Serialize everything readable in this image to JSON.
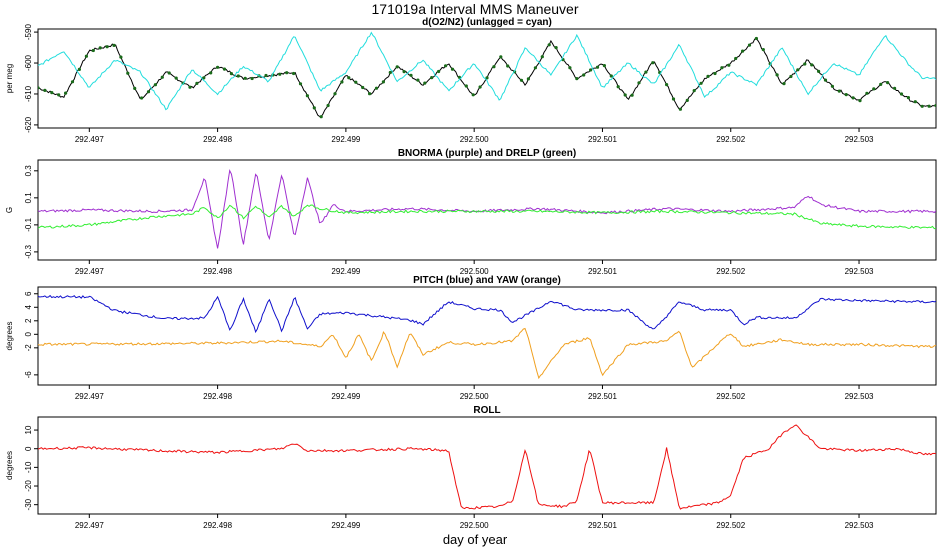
{
  "figure": {
    "title": "171019a   Interval MMS Maneuver",
    "xlabel": "day of year"
  },
  "chart_data": [
    {
      "type": "line",
      "title": "d(O2/N2) (unlagged = cyan)",
      "xlabel": "day of year",
      "ylabel": "per meg",
      "xlim": [
        292.4966,
        292.5036
      ],
      "ylim": [
        -621,
        -589
      ],
      "yticks": [
        -590,
        -600,
        -610,
        -620
      ],
      "xticks": [
        "292.497",
        "292.498",
        "292.499",
        "292.500",
        "292.501",
        "292.502",
        "292.503"
      ],
      "series": [
        {
          "name": "lagged",
          "color": "#000000",
          "markers": "#1a6b1a",
          "keys": [
            [
              292.4966,
              -608
            ],
            [
              292.4968,
              -611
            ],
            [
              292.497,
              -596
            ],
            [
              292.4972,
              -594
            ],
            [
              292.4974,
              -612
            ],
            [
              292.4976,
              -603
            ],
            [
              292.4978,
              -608
            ],
            [
              292.498,
              -601
            ],
            [
              292.4982,
              -605
            ],
            [
              292.4984,
              -604
            ],
            [
              292.4986,
              -603
            ],
            [
              292.4988,
              -618
            ],
            [
              292.499,
              -604
            ],
            [
              292.4992,
              -610
            ],
            [
              292.4994,
              -601
            ],
            [
              292.4996,
              -607
            ],
            [
              292.4998,
              -600
            ],
            [
              292.5,
              -611
            ],
            [
              292.5002,
              -598
            ],
            [
              292.5004,
              -607
            ],
            [
              292.5006,
              -593
            ],
            [
              292.5008,
              -605
            ],
            [
              292.501,
              -600
            ],
            [
              292.5012,
              -612
            ],
            [
              292.5014,
              -599
            ],
            [
              292.5016,
              -615
            ],
            [
              292.5018,
              -605
            ],
            [
              292.502,
              -600
            ],
            [
              292.5022,
              -592
            ],
            [
              292.5024,
              -607
            ],
            [
              292.5026,
              -599
            ],
            [
              292.5028,
              -608
            ],
            [
              292.503,
              -612
            ],
            [
              292.5032,
              -606
            ],
            [
              292.5034,
              -612
            ],
            [
              292.5035,
              -614
            ]
          ]
        },
        {
          "name": "unlagged",
          "color": "#22dddd",
          "keys": [
            [
              292.4966,
              -601
            ],
            [
              292.4968,
              -596
            ],
            [
              292.497,
              -608
            ],
            [
              292.4972,
              -599
            ],
            [
              292.4974,
              -603
            ],
            [
              292.4976,
              -615
            ],
            [
              292.4978,
              -602
            ],
            [
              292.498,
              -610
            ],
            [
              292.4982,
              -601
            ],
            [
              292.4984,
              -606
            ],
            [
              292.4986,
              -591
            ],
            [
              292.4988,
              -609
            ],
            [
              292.499,
              -603
            ],
            [
              292.4992,
              -590
            ],
            [
              292.4994,
              -606
            ],
            [
              292.4996,
              -599
            ],
            [
              292.4998,
              -609
            ],
            [
              292.5,
              -600
            ],
            [
              292.5002,
              -612
            ],
            [
              292.5004,
              -595
            ],
            [
              292.5006,
              -604
            ],
            [
              292.5008,
              -591
            ],
            [
              292.501,
              -608
            ],
            [
              292.5012,
              -600
            ],
            [
              292.5014,
              -607
            ],
            [
              292.5016,
              -594
            ],
            [
              292.5018,
              -611
            ],
            [
              292.502,
              -603
            ],
            [
              292.5022,
              -607
            ],
            [
              292.5024,
              -595
            ],
            [
              292.5026,
              -610
            ],
            [
              292.5028,
              -600
            ],
            [
              292.503,
              -604
            ],
            [
              292.5032,
              -591
            ],
            [
              292.5034,
              -601
            ],
            [
              292.5035,
              -605
            ]
          ]
        }
      ]
    },
    {
      "type": "line",
      "title": "BNORMA (purple) and DRELP (green)",
      "xlabel": "day of year",
      "ylabel": "G",
      "xlim": [
        292.4966,
        292.5036
      ],
      "ylim": [
        -0.36,
        0.38
      ],
      "yticks": [
        0.3,
        0.1,
        -0.1,
        -0.3
      ],
      "ytick_labels": [
        "0.3",
        "0.1",
        "-0.1",
        "-0.3"
      ],
      "xticks": [
        "292.497",
        "292.498",
        "292.499",
        "292.500",
        "292.501",
        "292.502",
        "292.503"
      ],
      "series": [
        {
          "name": "BNORMA",
          "color": "#a030d0",
          "keys": [
            [
              292.4966,
              0.0
            ],
            [
              292.497,
              0.01
            ],
            [
              292.4975,
              0.0
            ],
            [
              292.4978,
              0.01
            ],
            [
              292.4979,
              0.25
            ],
            [
              292.498,
              -0.28
            ],
            [
              292.4981,
              0.33
            ],
            [
              292.4982,
              -0.25
            ],
            [
              292.4983,
              0.3
            ],
            [
              292.4984,
              -0.22
            ],
            [
              292.4985,
              0.28
            ],
            [
              292.4986,
              -0.2
            ],
            [
              292.4987,
              0.25
            ],
            [
              292.4988,
              -0.1
            ],
            [
              292.4989,
              0.05
            ],
            [
              292.499,
              0.0
            ],
            [
              292.4995,
              0.02
            ],
            [
              292.5,
              0.0
            ],
            [
              292.5005,
              0.02
            ],
            [
              292.501,
              -0.01
            ],
            [
              292.5015,
              0.02
            ],
            [
              292.502,
              0.0
            ],
            [
              292.5025,
              0.03
            ],
            [
              292.5026,
              0.12
            ],
            [
              292.5027,
              0.05
            ],
            [
              292.503,
              0.0
            ],
            [
              292.5035,
              0.0
            ]
          ]
        },
        {
          "name": "DRELP",
          "color": "#33ee33",
          "keys": [
            [
              292.4966,
              -0.12
            ],
            [
              292.497,
              -0.1
            ],
            [
              292.4975,
              -0.04
            ],
            [
              292.4978,
              -0.02
            ],
            [
              292.4979,
              0.03
            ],
            [
              292.498,
              -0.05
            ],
            [
              292.4981,
              0.05
            ],
            [
              292.4982,
              -0.05
            ],
            [
              292.4983,
              0.04
            ],
            [
              292.4984,
              -0.05
            ],
            [
              292.4985,
              0.04
            ],
            [
              292.4986,
              -0.04
            ],
            [
              292.4987,
              0.05
            ],
            [
              292.4988,
              0.02
            ],
            [
              292.499,
              -0.01
            ],
            [
              292.4995,
              0.0
            ],
            [
              292.5,
              0.0
            ],
            [
              292.5005,
              0.0
            ],
            [
              292.501,
              -0.01
            ],
            [
              292.5015,
              0.0
            ],
            [
              292.502,
              -0.01
            ],
            [
              292.5025,
              -0.02
            ],
            [
              292.5027,
              -0.09
            ],
            [
              292.503,
              -0.11
            ],
            [
              292.5035,
              -0.12
            ]
          ]
        }
      ]
    },
    {
      "type": "line",
      "title": "PITCH (blue) and YAW (orange)",
      "xlabel": "day of year",
      "ylabel": "degrees",
      "xlim": [
        292.4966,
        292.5036
      ],
      "ylim": [
        -7.5,
        7
      ],
      "yticks": [
        6,
        4,
        2,
        0,
        -2,
        -6
      ],
      "xticks": [
        "292.497",
        "292.498",
        "292.499",
        "292.500",
        "292.501",
        "292.502",
        "292.503"
      ],
      "series": [
        {
          "name": "PITCH",
          "color": "#1010cc",
          "keys": [
            [
              292.4966,
              5.6
            ],
            [
              292.497,
              5.5
            ],
            [
              292.4972,
              3.5
            ],
            [
              292.4976,
              2.3
            ],
            [
              292.4979,
              2.4
            ],
            [
              292.498,
              5.5
            ],
            [
              292.4981,
              0.5
            ],
            [
              292.4982,
              5.3
            ],
            [
              292.4983,
              0.2
            ],
            [
              292.4984,
              5.4
            ],
            [
              292.4985,
              0.5
            ],
            [
              292.4986,
              5.5
            ],
            [
              292.4987,
              0.8
            ],
            [
              292.4988,
              3.0
            ],
            [
              292.499,
              3.2
            ],
            [
              292.4995,
              2.1
            ],
            [
              292.4996,
              1.5
            ],
            [
              292.4998,
              4.8
            ],
            [
              292.5,
              3.8
            ],
            [
              292.5002,
              3.6
            ],
            [
              292.5003,
              1.8
            ],
            [
              292.5005,
              3.8
            ],
            [
              292.5006,
              5.0
            ],
            [
              292.5008,
              3.6
            ],
            [
              292.5012,
              3.6
            ],
            [
              292.5014,
              0.6
            ],
            [
              292.5016,
              4.8
            ],
            [
              292.5018,
              3.6
            ],
            [
              292.502,
              3.6
            ],
            [
              292.5021,
              1.5
            ],
            [
              292.5022,
              2.5
            ],
            [
              292.5025,
              2.4
            ],
            [
              292.5027,
              5.2
            ],
            [
              292.503,
              5.0
            ],
            [
              292.5035,
              4.8
            ]
          ]
        },
        {
          "name": "YAW",
          "color": "#f0a020",
          "keys": [
            [
              292.4966,
              -1.5
            ],
            [
              292.4975,
              -1.4
            ],
            [
              292.498,
              -1.3
            ],
            [
              292.4985,
              -1.0
            ],
            [
              292.4988,
              -1.8
            ],
            [
              292.4989,
              0.0
            ],
            [
              292.499,
              -3.5
            ],
            [
              292.4991,
              0.0
            ],
            [
              292.4992,
              -4.0
            ],
            [
              292.4993,
              0.5
            ],
            [
              292.4994,
              -4.8
            ],
            [
              292.4995,
              0.3
            ],
            [
              292.4996,
              -3.0
            ],
            [
              292.4998,
              -1.2
            ],
            [
              292.5,
              -1.5
            ],
            [
              292.5003,
              -1.0
            ],
            [
              292.5004,
              1.0
            ],
            [
              292.5005,
              -6.5
            ],
            [
              292.5007,
              -1.5
            ],
            [
              292.5009,
              -0.5
            ],
            [
              292.501,
              -6.0
            ],
            [
              292.5012,
              -1.5
            ],
            [
              292.5015,
              -1.0
            ],
            [
              292.5016,
              0.5
            ],
            [
              292.5017,
              -5.0
            ],
            [
              292.5019,
              -1.4
            ],
            [
              292.502,
              0.2
            ],
            [
              292.5021,
              -1.8
            ],
            [
              292.5024,
              -0.8
            ],
            [
              292.5026,
              -1.5
            ],
            [
              292.503,
              -1.5
            ],
            [
              292.5035,
              -1.8
            ]
          ]
        }
      ]
    },
    {
      "type": "line",
      "title": "ROLL",
      "xlabel": "day of year",
      "ylabel": "degrees",
      "xlim": [
        292.4966,
        292.5036
      ],
      "ylim": [
        -35,
        17
      ],
      "yticks": [
        10,
        0,
        -10,
        -20,
        -30
      ],
      "xticks": [
        "292.497",
        "292.498",
        "292.499",
        "292.500",
        "292.501",
        "292.502",
        "292.503"
      ],
      "series": [
        {
          "name": "ROLL",
          "color": "#ee1111",
          "keys": [
            [
              292.4966,
              0
            ],
            [
              292.497,
              0.5
            ],
            [
              292.4975,
              -1
            ],
            [
              292.498,
              -2
            ],
            [
              292.4985,
              0
            ],
            [
              292.4986,
              3
            ],
            [
              292.4987,
              -1
            ],
            [
              292.499,
              -1
            ],
            [
              292.4995,
              0
            ],
            [
              292.4998,
              -1
            ],
            [
              292.4999,
              -32
            ],
            [
              292.5002,
              -31
            ],
            [
              292.5003,
              -28
            ],
            [
              292.5004,
              0
            ],
            [
              292.5005,
              -30
            ],
            [
              292.5007,
              -31
            ],
            [
              292.5008,
              -28
            ],
            [
              292.5009,
              0
            ],
            [
              292.501,
              -29
            ],
            [
              292.5014,
              -29
            ],
            [
              292.5015,
              0
            ],
            [
              292.5016,
              -32
            ],
            [
              292.5019,
              -29
            ],
            [
              292.502,
              -25
            ],
            [
              292.5021,
              -5
            ],
            [
              292.5023,
              0
            ],
            [
              292.5024,
              8
            ],
            [
              292.5025,
              13
            ],
            [
              292.5027,
              0
            ],
            [
              292.503,
              -1
            ],
            [
              292.5033,
              0
            ],
            [
              292.5035,
              -3
            ]
          ]
        }
      ]
    }
  ]
}
